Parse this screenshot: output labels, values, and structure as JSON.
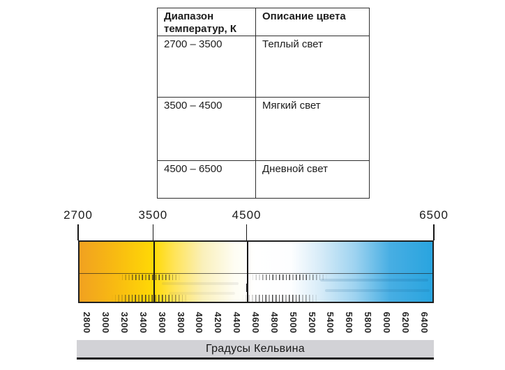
{
  "table": {
    "headers": [
      "Диапазон температур, К",
      "Описание цвета"
    ],
    "rows": [
      {
        "range": "2700 – 3500",
        "description": "Теплый  свет"
      },
      {
        "range": "3500 – 4500",
        "description": "Мягкий свет"
      },
      {
        "range": "4500 – 6500",
        "description": "Дневной свет"
      }
    ]
  },
  "scale": {
    "caption": "Градусы Кельвина",
    "range_kelvin": [
      2700,
      6500
    ],
    "top_markers": [
      "2700",
      "3500",
      "4500",
      "6500"
    ],
    "bottom_labels": [
      "2800",
      "3000",
      "3200",
      "3400",
      "3600",
      "3800",
      "4000",
      "4200",
      "4400",
      "4600",
      "4800",
      "5000",
      "5200",
      "5400",
      "5600",
      "5800",
      "6000",
      "6200",
      "6400"
    ],
    "colors": {
      "warm_orange": "#f1a120",
      "yellow": "#ffd905",
      "neutral_white": "#ffffff",
      "cool_blue": "#29a4df",
      "caption_bar_gray": "#d2d2d6"
    }
  }
}
